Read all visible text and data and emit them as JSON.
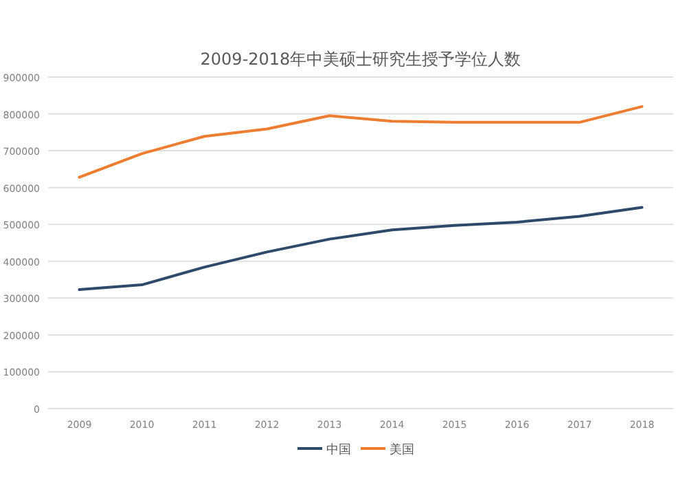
{
  "chart_data": {
    "type": "line",
    "title": "2009-2018年中美硕士研究生授予学位人数",
    "categories": [
      "2009",
      "2010",
      "2011",
      "2012",
      "2013",
      "2014",
      "2015",
      "2016",
      "2017",
      "2018"
    ],
    "series": [
      {
        "name": "中国",
        "color": "#2e4a6b",
        "values": [
          323000,
          336000,
          384000,
          425000,
          460000,
          485000,
          497000,
          506000,
          522000,
          546000
        ]
      },
      {
        "name": "美国",
        "color": "#ed7d31",
        "values": [
          628000,
          692000,
          739000,
          759000,
          795000,
          780000,
          777000,
          777000,
          777000,
          820000
        ]
      }
    ],
    "ylim": [
      0,
      900000
    ],
    "yticks": [
      0,
      100000,
      200000,
      300000,
      400000,
      500000,
      600000,
      700000,
      800000,
      900000
    ],
    "grid": "y",
    "legend": "bottom"
  }
}
